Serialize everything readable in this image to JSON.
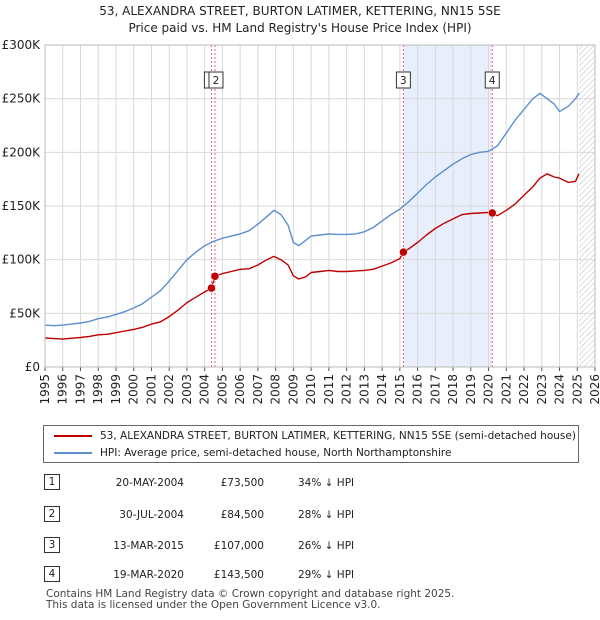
{
  "header": {
    "title": "53, ALEXANDRA STREET, BURTON LATIMER, KETTERING, NN15 5SE",
    "subtitle": "Price paid vs. HM Land Registry's House Price Index (HPI)"
  },
  "legend": {
    "series1": "53, ALEXANDRA STREET, BURTON LATIMER, KETTERING, NN15 5SE (semi-detached house)",
    "series2": "HPI: Average price, semi-detached house, North Northamptonshire"
  },
  "transactions": [
    {
      "num": "1",
      "date": "20-MAY-2004",
      "price": "£73,500",
      "hpi": "34% ↓ HPI"
    },
    {
      "num": "2",
      "date": "30-JUL-2004",
      "price": "£84,500",
      "hpi": "28% ↓ HPI"
    },
    {
      "num": "3",
      "date": "13-MAR-2015",
      "price": "£107,000",
      "hpi": "26% ↓ HPI"
    },
    {
      "num": "4",
      "date": "19-MAR-2020",
      "price": "£143,500",
      "hpi": "29% ↓ HPI"
    }
  ],
  "footer": {
    "line1": "Contains HM Land Registry data © Crown copyright and database right 2025.",
    "line2": "This data is licensed under the Open Government Licence v3.0."
  },
  "colors": {
    "property": "#c00000",
    "hpi": "#5b8fd0",
    "highlight": "#e8eefb",
    "marker_line": "#e06080",
    "grid": "#d9d9d9"
  },
  "chart_data": {
    "type": "line",
    "title": "Price paid vs. HM Land Registry's House Price Index (HPI)",
    "xlabel": "",
    "ylabel": "",
    "xlim": [
      1995,
      2026
    ],
    "ylim": [
      0,
      300000
    ],
    "yticks": [
      0,
      50000,
      100000,
      150000,
      200000,
      250000,
      300000
    ],
    "ytick_labels": [
      "£0",
      "£50K",
      "£100K",
      "£150K",
      "£200K",
      "£250K",
      "£300K"
    ],
    "xticks": [
      1995,
      1996,
      1997,
      1998,
      1999,
      2000,
      2001,
      2002,
      2003,
      2004,
      2005,
      2006,
      2007,
      2008,
      2009,
      2010,
      2011,
      2012,
      2013,
      2014,
      2015,
      2016,
      2017,
      2018,
      2019,
      2020,
      2021,
      2022,
      2023,
      2024,
      2025,
      2026
    ],
    "grid": true,
    "highlight_span": [
      2015.2,
      2020.2
    ],
    "hatched_after": 2025.1,
    "series": [
      {
        "name": "53, ALEXANDRA STREET, BURTON LATIMER, KETTERING, NN15 5SE (semi-detached house)",
        "x": [
          1995.0,
          1995.5,
          1996.0,
          1996.5,
          1997.0,
          1997.5,
          1998.0,
          1998.5,
          1999.0,
          1999.5,
          2000.0,
          2000.5,
          2001.0,
          2001.5,
          2002.0,
          2002.5,
          2003.0,
          2003.5,
          2004.0,
          2004.38,
          2004.58,
          2005.0,
          2005.5,
          2006.0,
          2006.5,
          2007.0,
          2007.5,
          2007.9,
          2008.3,
          2008.7,
          2009.0,
          2009.3,
          2009.7,
          2010.0,
          2010.5,
          2011.0,
          2011.5,
          2012.0,
          2012.5,
          2013.0,
          2013.5,
          2014.0,
          2014.5,
          2015.0,
          2015.2,
          2015.5,
          2016.0,
          2016.5,
          2017.0,
          2017.5,
          2018.0,
          2018.5,
          2019.0,
          2019.5,
          2020.0,
          2020.21,
          2020.5,
          2021.0,
          2021.5,
          2022.0,
          2022.5,
          2022.9,
          2023.3,
          2023.7,
          2024.0,
          2024.5,
          2024.9,
          2025.1
        ],
        "y": [
          27000,
          26500,
          26000,
          26800,
          27500,
          28500,
          30000,
          30500,
          32000,
          33500,
          35000,
          37000,
          40000,
          42000,
          47000,
          53000,
          60000,
          65000,
          70000,
          73500,
          84500,
          87000,
          89000,
          91000,
          91500,
          95000,
          100000,
          103000,
          100000,
          95000,
          85000,
          82000,
          84000,
          88000,
          89000,
          90000,
          89000,
          89000,
          89500,
          90000,
          91000,
          94000,
          97000,
          101000,
          107000,
          110000,
          116000,
          123000,
          129000,
          134000,
          138000,
          142000,
          143000,
          143500,
          144000,
          143500,
          141000,
          146000,
          152000,
          160000,
          168000,
          176000,
          180000,
          177000,
          176000,
          172000,
          173000,
          180000
        ]
      },
      {
        "name": "HPI: Average price, semi-detached house, North Northamptonshire",
        "x": [
          1995.0,
          1995.5,
          1996.0,
          1996.5,
          1997.0,
          1997.5,
          1998.0,
          1998.5,
          1999.0,
          1999.5,
          2000.0,
          2000.5,
          2001.0,
          2001.5,
          2002.0,
          2002.5,
          2003.0,
          2003.5,
          2004.0,
          2004.5,
          2005.0,
          2005.5,
          2006.0,
          2006.5,
          2007.0,
          2007.5,
          2007.9,
          2008.3,
          2008.7,
          2009.0,
          2009.3,
          2009.7,
          2010.0,
          2010.5,
          2011.0,
          2011.5,
          2012.0,
          2012.5,
          2013.0,
          2013.5,
          2014.0,
          2014.5,
          2015.0,
          2015.5,
          2016.0,
          2016.5,
          2017.0,
          2017.5,
          2018.0,
          2018.5,
          2019.0,
          2019.5,
          2020.0,
          2020.5,
          2021.0,
          2021.5,
          2022.0,
          2022.5,
          2022.9,
          2023.3,
          2023.7,
          2024.0,
          2024.5,
          2024.9,
          2025.1
        ],
        "y": [
          39000,
          38500,
          39000,
          40000,
          41000,
          42500,
          45000,
          46500,
          49000,
          51500,
          55000,
          59000,
          65000,
          71000,
          80000,
          90000,
          100000,
          107000,
          113000,
          117000,
          120000,
          122000,
          124000,
          127000,
          133000,
          140000,
          146000,
          142000,
          132000,
          116000,
          113000,
          118000,
          122000,
          123000,
          124000,
          123500,
          123500,
          124000,
          126000,
          130000,
          136000,
          142000,
          147000,
          154000,
          162000,
          170000,
          177000,
          183000,
          189000,
          194000,
          198000,
          200000,
          201000,
          206000,
          218000,
          230000,
          240000,
          250000,
          255000,
          250000,
          245000,
          238000,
          243000,
          250000,
          255000
        ]
      }
    ],
    "transactions": [
      {
        "label": "1",
        "x": 2004.38,
        "y": 73500
      },
      {
        "label": "2",
        "x": 2004.58,
        "y": 84500
      },
      {
        "label": "3",
        "x": 2015.2,
        "y": 107000
      },
      {
        "label": "4",
        "x": 2020.21,
        "y": 143500
      }
    ]
  }
}
